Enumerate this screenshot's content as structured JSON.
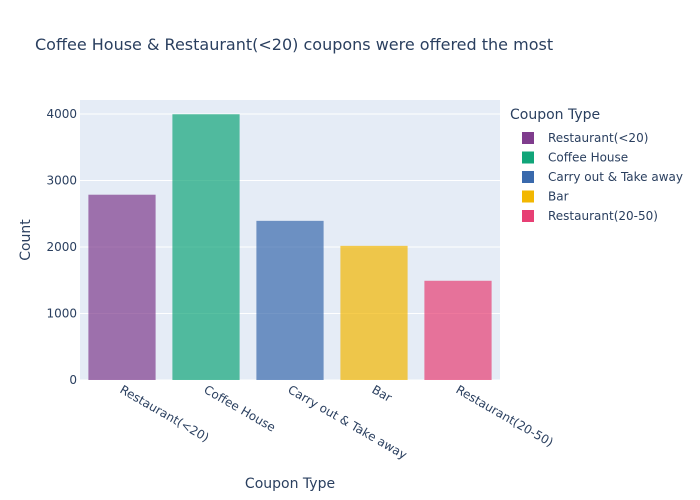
{
  "chart_data": {
    "type": "bar",
    "title": "Coffee House & Restaurant(<20) coupons were offered the most",
    "xlabel": "Coupon Type",
    "ylabel": "Count",
    "categories": [
      "Restaurant(<20)",
      "Coffee House",
      "Carry out & Take away",
      "Bar",
      "Restaurant(20-50)"
    ],
    "values": [
      2786,
      3996,
      2393,
      2017,
      1492
    ],
    "colors": [
      "#7f3c8d",
      "#11a579",
      "#3969ac",
      "#f2b701",
      "#e73f74"
    ],
    "ylim": [
      0,
      4210
    ],
    "yticks": [
      0,
      1000,
      2000,
      3000,
      4000
    ],
    "grid": true,
    "legend": {
      "title": "Coupon Type",
      "placement": "right",
      "entries": [
        "Restaurant(<20)",
        "Coffee House",
        "Carry out & Take away",
        "Bar",
        "Restaurant(20-50)"
      ]
    }
  }
}
